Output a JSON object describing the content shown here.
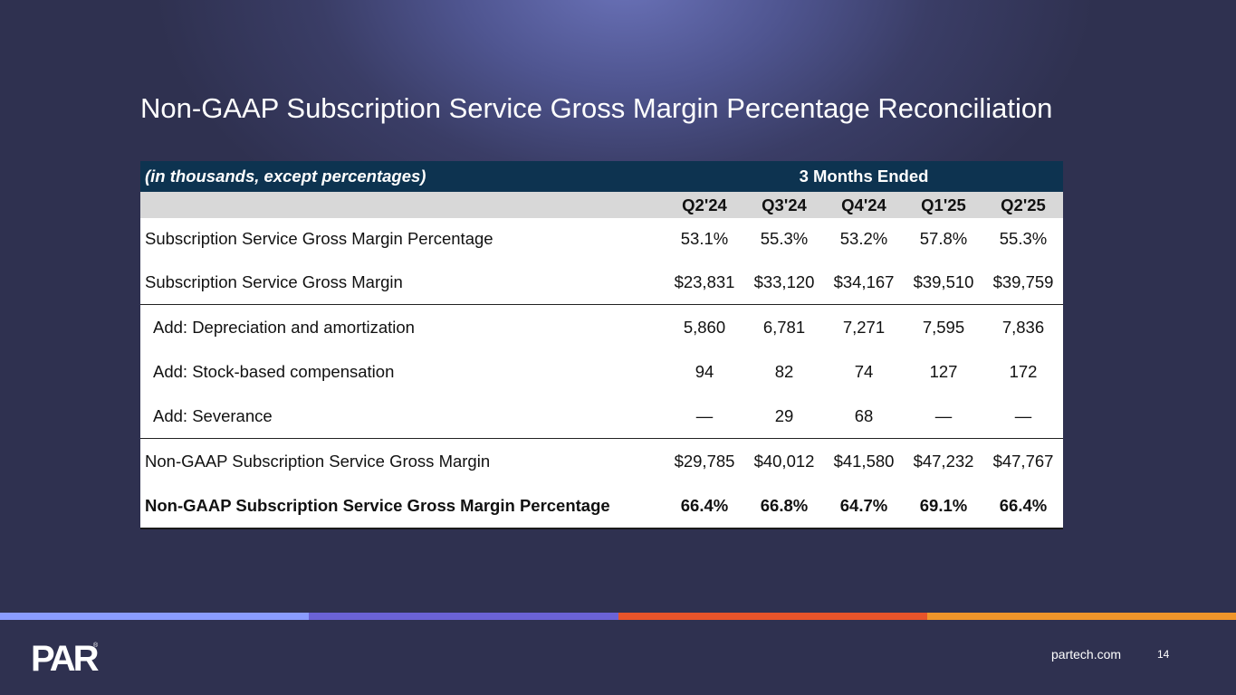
{
  "slide": {
    "title": "Non-GAAP Subscription Service Gross Margin Percentage Reconciliation",
    "footer_url": "partech.com",
    "page_number": "14",
    "logo_text": "PAR",
    "stripe_colors": [
      "#8a9cff",
      "#6b63d6",
      "#e8542a",
      "#f0952a"
    ]
  },
  "table": {
    "units_label": "(in thousands, except percentages)",
    "period_label": "3 Months Ended",
    "columns": [
      "Q2'24",
      "Q3'24",
      "Q4'24",
      "Q1'25",
      "Q2'25"
    ],
    "rows": [
      {
        "label": "Subscription Service Gross Margin Percentage",
        "values": [
          "53.1%",
          "55.3%",
          "53.2%",
          "57.8%",
          "55.3%"
        ]
      },
      {
        "label": "Subscription Service Gross Margin",
        "values": [
          "$23,831",
          "$33,120",
          "$34,167",
          "$39,510",
          "$39,759"
        ]
      },
      {
        "label": "Add: Depreciation and amortization",
        "values": [
          "5,860",
          "6,781",
          "7,271",
          "7,595",
          "7,836"
        ]
      },
      {
        "label": "Add: Stock-based compensation",
        "values": [
          "94",
          "82",
          "74",
          "127",
          "172"
        ]
      },
      {
        "label": "Add: Severance",
        "values": [
          "—",
          "29",
          "68",
          "—",
          "—"
        ]
      },
      {
        "label": "Non-GAAP Subscription Service Gross Margin",
        "values": [
          "$29,785",
          "$40,012",
          "$41,580",
          "$47,232",
          "$47,767"
        ]
      },
      {
        "label": "Non-GAAP Subscription Service Gross Margin Percentage",
        "values": [
          "66.4%",
          "66.8%",
          "64.7%",
          "69.1%",
          "66.4%"
        ]
      }
    ]
  }
}
